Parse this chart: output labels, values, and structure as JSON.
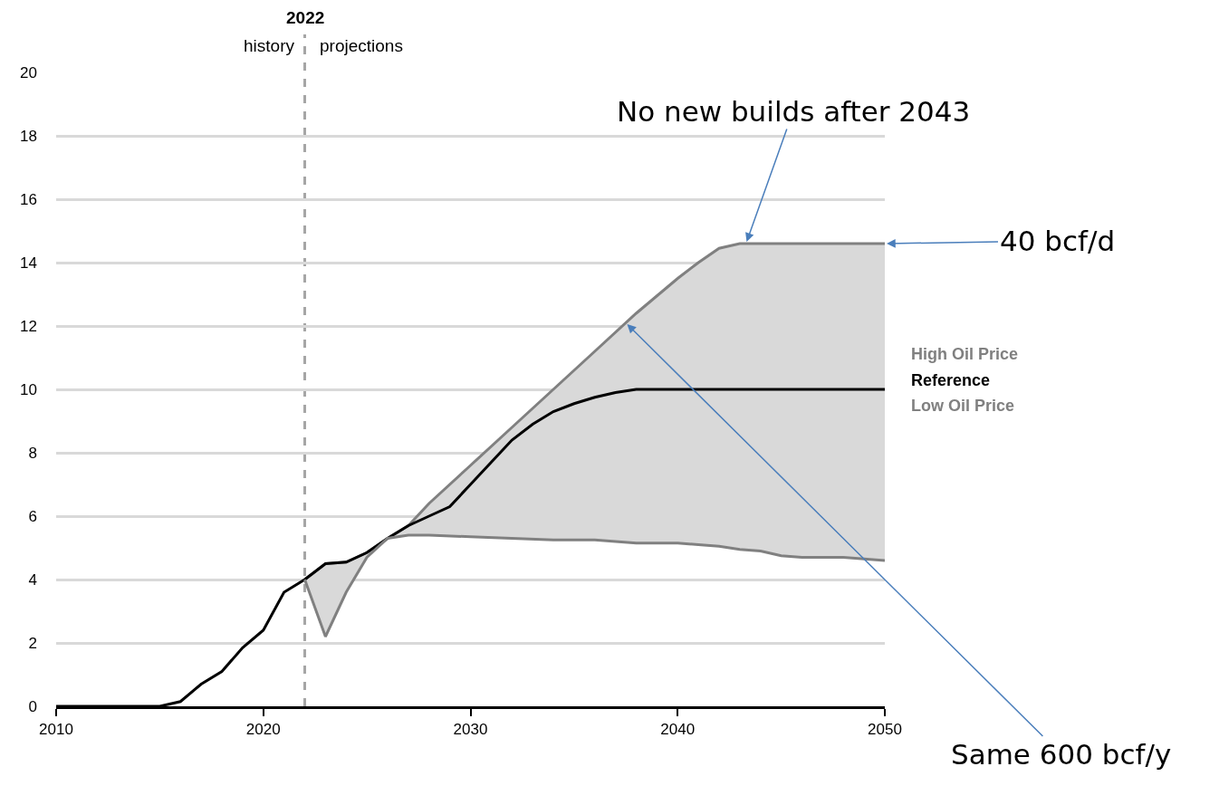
{
  "chart_data": {
    "type": "line",
    "x": [
      2010,
      2011,
      2012,
      2013,
      2014,
      2015,
      2016,
      2017,
      2018,
      2019,
      2020,
      2021,
      2022,
      2023,
      2024,
      2025,
      2026,
      2027,
      2028,
      2029,
      2030,
      2031,
      2032,
      2033,
      2034,
      2035,
      2036,
      2037,
      2038,
      2039,
      2040,
      2041,
      2042,
      2043,
      2044,
      2045,
      2046,
      2047,
      2048,
      2049,
      2050
    ],
    "series": [
      {
        "name": "High Oil Price",
        "color": "#808080",
        "x": [
          2022,
          2023,
          2024,
          2025,
          2026,
          2027,
          2028,
          2030,
          2032,
          2034,
          2036,
          2038,
          2040,
          2041,
          2042,
          2043,
          2044,
          2045,
          2046,
          2048,
          2050
        ],
        "values": [
          4.0,
          4.5,
          4.55,
          4.85,
          5.3,
          5.7,
          6.4,
          7.6,
          8.8,
          10.0,
          11.2,
          12.4,
          13.5,
          14.0,
          14.45,
          14.6,
          14.6,
          14.6,
          14.6,
          14.6,
          14.6
        ],
        "lower": [
          4.0,
          2.2,
          3.6,
          4.7,
          5.3,
          5.4,
          5.4,
          5.35,
          5.3,
          5.25,
          5.25,
          5.15,
          5.15,
          5.1,
          5.05,
          4.95,
          4.9,
          4.75,
          4.7,
          4.7,
          4.6
        ],
        "upper": [
          4.0,
          4.5,
          4.55,
          4.85,
          5.3,
          5.7,
          6.4,
          7.6,
          8.8,
          10.0,
          11.2,
          12.4,
          13.5,
          14.0,
          14.45,
          14.6,
          14.6,
          14.6,
          14.6,
          14.6,
          14.6
        ]
      },
      {
        "name": "Reference",
        "color": "#000000",
        "values": [
          0,
          0,
          0,
          0,
          0,
          0,
          0.15,
          0.7,
          1.1,
          1.85,
          2.4,
          3.6,
          4.0,
          4.5,
          4.55,
          4.85,
          5.3,
          5.7,
          6.0,
          6.3,
          7.0,
          7.7,
          8.4,
          8.9,
          9.3,
          9.55,
          9.75,
          9.9,
          10.0,
          10.0,
          10.0,
          10.0,
          10.0,
          10.0,
          10.0,
          10.0,
          10.0,
          10.0,
          10.0,
          10.0,
          10.0
        ]
      },
      {
        "name": "Low Oil Price",
        "color": "#808080",
        "x": [
          2022,
          2023,
          2024,
          2025,
          2026,
          2027,
          2028,
          2030,
          2032,
          2034,
          2036,
          2038,
          2040,
          2041,
          2042,
          2043,
          2044,
          2045,
          2046,
          2048,
          2050
        ],
        "values": [
          4.0,
          2.2,
          3.6,
          4.7,
          5.3,
          5.4,
          5.4,
          5.35,
          5.3,
          5.25,
          5.25,
          5.15,
          5.15,
          5.1,
          5.05,
          4.95,
          4.9,
          4.75,
          4.7,
          4.7,
          4.6
        ]
      }
    ],
    "xlim": [
      2010,
      2050
    ],
    "xticks": [
      2010,
      2020,
      2030,
      2040,
      2050
    ],
    "ylim": [
      0,
      20
    ],
    "yticks": [
      0,
      2,
      4,
      6,
      8,
      10,
      12,
      14,
      16,
      18,
      20
    ],
    "grid": "y",
    "legend": "right",
    "line_style": "solid",
    "ref_lines": [
      {
        "axis": "x",
        "value": 2022,
        "label": "2022",
        "color": "#a6a6a6",
        "line_style": "dashed"
      }
    ],
    "annotations": [
      "history",
      "projections",
      {
        "text": "No new builds after 2043",
        "x": 2043.3,
        "y": 14.6
      },
      {
        "text": "40 bcf/d",
        "x": 2050,
        "y": 14.6
      },
      {
        "text": "Same 600 bcf/y",
        "x": 2037.5,
        "y": 12.1
      }
    ]
  }
}
